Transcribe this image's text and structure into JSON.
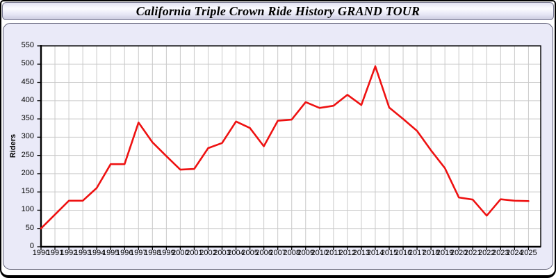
{
  "header": {
    "title": "California Triple Crown Ride History GRAND TOUR"
  },
  "chart_data": {
    "type": "line",
    "title": "California Triple Crown Ride History GRAND TOUR",
    "xlabel": "",
    "ylabel": "Riders",
    "x": [
      1990,
      1991,
      1992,
      1993,
      1994,
      1995,
      1996,
      1997,
      1998,
      1999,
      2000,
      2001,
      2002,
      2003,
      2004,
      2005,
      2006,
      2007,
      2008,
      2009,
      2010,
      2011,
      2012,
      2013,
      2014,
      2015,
      2016,
      2017,
      2018,
      2019,
      2020,
      2021,
      2022,
      2023,
      2024,
      2025
    ],
    "series": [
      {
        "name": "Riders",
        "color": "#ee1111",
        "values": [
          50,
          88,
          126,
          126,
          161,
          226,
          226,
          340,
          286,
          248,
          211,
          213,
          270,
          284,
          343,
          325,
          275,
          345,
          348,
          396,
          380,
          386,
          416,
          388,
          494,
          381,
          350,
          317,
          264,
          215,
          135,
          129,
          85,
          130,
          126,
          125
        ]
      }
    ],
    "ylim": [
      0,
      550
    ],
    "y_tick_step": 50,
    "grid": true,
    "legend": false
  },
  "colors": {
    "line": "#ee1111",
    "plot_background": "#ffffff",
    "panel_background": "#eaeaf8",
    "grid": "#c9c9c9",
    "axis": "#000000",
    "outer_border": "#000000"
  }
}
